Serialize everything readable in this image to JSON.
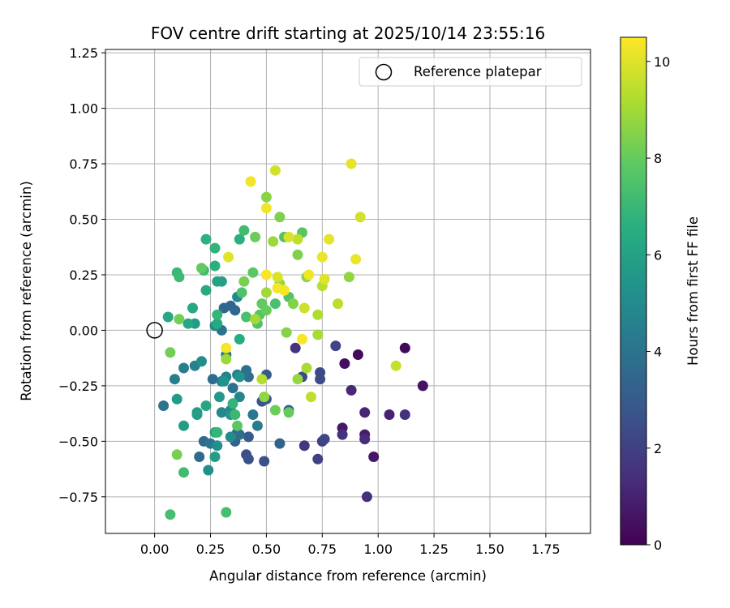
{
  "chart_data": {
    "type": "scatter",
    "title": "FOV centre drift starting at 2025/10/14 23:55:16",
    "xlabel": "Angular distance from reference (arcmin)",
    "ylabel": "Rotation from reference (arcmin)",
    "xlim": [
      -0.22,
      1.95
    ],
    "ylim": [
      -0.915,
      1.265
    ],
    "xticks": [
      0.0,
      0.25,
      0.5,
      0.75,
      1.0,
      1.25,
      1.5,
      1.75
    ],
    "yticks": [
      -0.75,
      -0.5,
      -0.25,
      0.0,
      0.25,
      0.5,
      0.75,
      1.0,
      1.25
    ],
    "grid": true,
    "legend": {
      "placement": "top-right",
      "entries": [
        "Reference platepar"
      ]
    },
    "reference_point": {
      "x": 0.0,
      "y": 0.0,
      "label": "Reference platepar"
    },
    "colorbar": {
      "label": "Hours from first FF file",
      "colormap": "viridis",
      "range": [
        0,
        10.5
      ],
      "ticks": [
        0,
        2,
        4,
        6,
        8,
        10
      ]
    },
    "series": [
      {
        "points": [
          {
            "x": 1.12,
            "y": -0.08,
            "c": 0.2
          },
          {
            "x": 0.91,
            "y": -0.11,
            "c": 0.3
          },
          {
            "x": 0.85,
            "y": -0.15,
            "c": 0.4
          },
          {
            "x": 1.2,
            "y": -0.25,
            "c": 0.5
          },
          {
            "x": 0.98,
            "y": -0.57,
            "c": 0.6
          },
          {
            "x": 0.84,
            "y": -0.44,
            "c": 0.7
          },
          {
            "x": 0.94,
            "y": -0.47,
            "c": 0.8
          },
          {
            "x": 1.05,
            "y": -0.38,
            "c": 1.0
          },
          {
            "x": 0.94,
            "y": -0.37,
            "c": 1.1
          },
          {
            "x": 0.88,
            "y": -0.27,
            "c": 1.2
          },
          {
            "x": 0.94,
            "y": -0.49,
            "c": 1.3
          },
          {
            "x": 0.95,
            "y": -0.75,
            "c": 1.4
          },
          {
            "x": 1.12,
            "y": -0.38,
            "c": 1.5
          },
          {
            "x": 0.84,
            "y": -0.47,
            "c": 1.5
          },
          {
            "x": 0.63,
            "y": -0.08,
            "c": 1.6
          },
          {
            "x": 0.67,
            "y": -0.52,
            "c": 1.7
          },
          {
            "x": 0.75,
            "y": -0.5,
            "c": 1.9
          },
          {
            "x": 0.73,
            "y": -0.58,
            "c": 2.0
          },
          {
            "x": 0.81,
            "y": -0.07,
            "c": 2.1
          },
          {
            "x": 0.76,
            "y": -0.49,
            "c": 2.2
          },
          {
            "x": 0.66,
            "y": -0.21,
            "c": 2.3
          },
          {
            "x": 0.74,
            "y": -0.19,
            "c": 2.3
          },
          {
            "x": 0.74,
            "y": -0.22,
            "c": 2.4
          },
          {
            "x": 0.41,
            "y": -0.56,
            "c": 2.5
          },
          {
            "x": 0.42,
            "y": -0.58,
            "c": 2.6
          },
          {
            "x": 0.49,
            "y": -0.59,
            "c": 2.6
          },
          {
            "x": 0.48,
            "y": -0.32,
            "c": 2.7
          },
          {
            "x": 0.5,
            "y": -0.31,
            "c": 2.8
          },
          {
            "x": 0.5,
            "y": -0.2,
            "c": 2.9
          },
          {
            "x": 0.37,
            "y": -0.46,
            "c": 3.0
          },
          {
            "x": 0.42,
            "y": -0.48,
            "c": 3.0
          },
          {
            "x": 0.6,
            "y": -0.36,
            "c": 3.1
          },
          {
            "x": 0.56,
            "y": -0.51,
            "c": 3.3
          },
          {
            "x": 0.36,
            "y": -0.5,
            "c": 3.3
          },
          {
            "x": 0.34,
            "y": 0.11,
            "c": 3.4
          },
          {
            "x": 0.31,
            "y": 0.1,
            "c": 3.5
          },
          {
            "x": 0.36,
            "y": 0.09,
            "c": 3.5
          },
          {
            "x": 0.2,
            "y": -0.57,
            "c": 3.6
          },
          {
            "x": 0.22,
            "y": -0.5,
            "c": 3.6
          },
          {
            "x": 0.26,
            "y": -0.22,
            "c": 3.7
          },
          {
            "x": 0.38,
            "y": -0.47,
            "c": 3.8
          },
          {
            "x": 0.42,
            "y": -0.21,
            "c": 3.8
          },
          {
            "x": 0.41,
            "y": -0.18,
            "c": 3.9
          },
          {
            "x": 0.35,
            "y": -0.26,
            "c": 3.9
          },
          {
            "x": 0.04,
            "y": -0.34,
            "c": 4.0
          },
          {
            "x": 0.3,
            "y": 0.0,
            "c": 4.0
          },
          {
            "x": 0.25,
            "y": -0.51,
            "c": 4.1
          },
          {
            "x": 0.32,
            "y": -0.11,
            "c": 4.1
          },
          {
            "x": 0.44,
            "y": -0.38,
            "c": 4.2
          },
          {
            "x": 0.46,
            "y": -0.43,
            "c": 4.3
          },
          {
            "x": 0.37,
            "y": -0.2,
            "c": 4.4
          },
          {
            "x": 0.3,
            "y": -0.23,
            "c": 4.4
          },
          {
            "x": 0.09,
            "y": -0.22,
            "c": 4.5
          },
          {
            "x": 0.13,
            "y": -0.17,
            "c": 4.5
          },
          {
            "x": 0.18,
            "y": -0.16,
            "c": 4.6
          },
          {
            "x": 0.32,
            "y": -0.21,
            "c": 4.6
          },
          {
            "x": 0.34,
            "y": -0.36,
            "c": 4.7
          },
          {
            "x": 0.38,
            "y": -0.3,
            "c": 4.8
          },
          {
            "x": 0.3,
            "y": -0.37,
            "c": 4.8
          },
          {
            "x": 0.37,
            "y": 0.15,
            "c": 4.9
          },
          {
            "x": 0.34,
            "y": -0.48,
            "c": 5.0
          },
          {
            "x": 0.27,
            "y": 0.02,
            "c": 5.0
          },
          {
            "x": 0.21,
            "y": -0.14,
            "c": 5.1
          },
          {
            "x": 0.24,
            "y": -0.63,
            "c": 5.2
          },
          {
            "x": 0.28,
            "y": -0.52,
            "c": 5.2
          },
          {
            "x": 0.31,
            "y": -0.23,
            "c": 5.3
          },
          {
            "x": 0.38,
            "y": -0.21,
            "c": 5.4
          },
          {
            "x": 0.34,
            "y": -0.38,
            "c": 5.4
          },
          {
            "x": 0.29,
            "y": -0.3,
            "c": 5.5
          },
          {
            "x": 0.19,
            "y": -0.37,
            "c": 5.6
          },
          {
            "x": 0.1,
            "y": -0.31,
            "c": 5.6
          },
          {
            "x": 0.18,
            "y": 0.03,
            "c": 5.7
          },
          {
            "x": 0.27,
            "y": -0.57,
            "c": 5.8
          },
          {
            "x": 0.13,
            "y": -0.43,
            "c": 5.8
          },
          {
            "x": 0.19,
            "y": -0.38,
            "c": 5.9
          },
          {
            "x": 0.3,
            "y": 0.22,
            "c": 5.9
          },
          {
            "x": 0.28,
            "y": 0.22,
            "c": 6.0
          },
          {
            "x": 0.23,
            "y": -0.34,
            "c": 6.1
          },
          {
            "x": 0.27,
            "y": -0.46,
            "c": 6.1
          },
          {
            "x": 0.15,
            "y": 0.03,
            "c": 6.2
          },
          {
            "x": 0.17,
            "y": 0.1,
            "c": 6.3
          },
          {
            "x": 0.06,
            "y": 0.06,
            "c": 6.3
          },
          {
            "x": 0.23,
            "y": 0.18,
            "c": 6.4
          },
          {
            "x": 0.28,
            "y": 0.03,
            "c": 6.4
          },
          {
            "x": 0.38,
            "y": -0.04,
            "c": 6.5
          },
          {
            "x": 0.38,
            "y": 0.41,
            "c": 6.6
          },
          {
            "x": 0.27,
            "y": 0.29,
            "c": 6.6
          },
          {
            "x": 0.23,
            "y": 0.41,
            "c": 6.7
          },
          {
            "x": 0.27,
            "y": 0.37,
            "c": 6.8
          },
          {
            "x": 0.35,
            "y": -0.33,
            "c": 6.8
          },
          {
            "x": 0.28,
            "y": 0.07,
            "c": 6.9
          },
          {
            "x": 0.28,
            "y": -0.46,
            "c": 6.9
          },
          {
            "x": 0.36,
            "y": -0.38,
            "c": 7.0
          },
          {
            "x": 0.1,
            "y": 0.26,
            "c": 7.0
          },
          {
            "x": 0.22,
            "y": 0.27,
            "c": 7.1
          },
          {
            "x": 0.11,
            "y": 0.24,
            "c": 7.1
          },
          {
            "x": 0.4,
            "y": 0.45,
            "c": 7.2
          },
          {
            "x": 0.13,
            "y": -0.64,
            "c": 7.2
          },
          {
            "x": 0.07,
            "y": -0.83,
            "c": 7.3
          },
          {
            "x": 0.32,
            "y": -0.82,
            "c": 7.3
          },
          {
            "x": 0.41,
            "y": 0.06,
            "c": 7.4
          },
          {
            "x": 0.54,
            "y": 0.12,
            "c": 7.4
          },
          {
            "x": 0.39,
            "y": 0.17,
            "c": 7.5
          },
          {
            "x": 0.46,
            "y": 0.03,
            "c": 7.5
          },
          {
            "x": 0.58,
            "y": 0.42,
            "c": 7.6
          },
          {
            "x": 0.6,
            "y": 0.15,
            "c": 7.6
          },
          {
            "x": 0.47,
            "y": 0.07,
            "c": 7.7
          },
          {
            "x": 0.66,
            "y": 0.44,
            "c": 7.7
          },
          {
            "x": 0.37,
            "y": -0.43,
            "c": 7.8
          },
          {
            "x": 0.44,
            "y": 0.26,
            "c": 7.8
          },
          {
            "x": 0.21,
            "y": 0.28,
            "c": 7.9
          },
          {
            "x": 0.48,
            "y": 0.12,
            "c": 7.9
          },
          {
            "x": 0.5,
            "y": 0.09,
            "c": 8.0
          },
          {
            "x": 0.6,
            "y": -0.37,
            "c": 8.0
          },
          {
            "x": 0.54,
            "y": -0.36,
            "c": 8.1
          },
          {
            "x": 0.45,
            "y": 0.42,
            "c": 8.1
          },
          {
            "x": 0.11,
            "y": 0.05,
            "c": 8.2
          },
          {
            "x": 0.07,
            "y": -0.1,
            "c": 8.2
          },
          {
            "x": 0.1,
            "y": -0.56,
            "c": 8.3
          },
          {
            "x": 0.4,
            "y": 0.22,
            "c": 8.3
          },
          {
            "x": 0.56,
            "y": 0.51,
            "c": 8.4
          },
          {
            "x": 0.64,
            "y": 0.34,
            "c": 8.4
          },
          {
            "x": 0.59,
            "y": -0.01,
            "c": 8.5
          },
          {
            "x": 0.62,
            "y": 0.12,
            "c": 8.5
          },
          {
            "x": 0.5,
            "y": 0.6,
            "c": 8.6
          },
          {
            "x": 0.68,
            "y": 0.24,
            "c": 8.6
          },
          {
            "x": 0.49,
            "y": -0.3,
            "c": 8.7
          },
          {
            "x": 0.87,
            "y": 0.24,
            "c": 8.7
          },
          {
            "x": 0.56,
            "y": 0.21,
            "c": 8.8
          },
          {
            "x": 0.64,
            "y": -0.22,
            "c": 8.8
          },
          {
            "x": 0.32,
            "y": -0.13,
            "c": 8.9
          },
          {
            "x": 0.53,
            "y": 0.4,
            "c": 8.9
          },
          {
            "x": 0.45,
            "y": 0.05,
            "c": 9.0
          },
          {
            "x": 0.5,
            "y": 0.17,
            "c": 9.0
          },
          {
            "x": 0.73,
            "y": -0.02,
            "c": 9.1
          },
          {
            "x": 0.68,
            "y": -0.17,
            "c": 9.1
          },
          {
            "x": 0.73,
            "y": 0.07,
            "c": 9.2
          },
          {
            "x": 0.48,
            "y": -0.22,
            "c": 9.3
          },
          {
            "x": 0.75,
            "y": 0.2,
            "c": 9.4
          },
          {
            "x": 0.82,
            "y": 0.12,
            "c": 9.4
          },
          {
            "x": 0.64,
            "y": 0.41,
            "c": 9.5
          },
          {
            "x": 0.7,
            "y": -0.3,
            "c": 9.5
          },
          {
            "x": 1.08,
            "y": -0.16,
            "c": 9.6
          },
          {
            "x": 0.67,
            "y": 0.1,
            "c": 9.7
          },
          {
            "x": 0.92,
            "y": 0.51,
            "c": 9.8
          },
          {
            "x": 0.54,
            "y": 0.72,
            "c": 9.8
          },
          {
            "x": 0.6,
            "y": 0.42,
            "c": 9.9
          },
          {
            "x": 0.55,
            "y": 0.24,
            "c": 9.9
          },
          {
            "x": 0.33,
            "y": 0.33,
            "c": 10.0
          },
          {
            "x": 0.76,
            "y": 0.23,
            "c": 10.0
          },
          {
            "x": 0.78,
            "y": 0.41,
            "c": 10.1
          },
          {
            "x": 0.88,
            "y": 0.75,
            "c": 10.1
          },
          {
            "x": 0.9,
            "y": 0.32,
            "c": 10.2
          },
          {
            "x": 0.75,
            "y": 0.33,
            "c": 10.2
          },
          {
            "x": 0.5,
            "y": 0.55,
            "c": 10.3
          },
          {
            "x": 0.43,
            "y": 0.67,
            "c": 10.3
          },
          {
            "x": 0.69,
            "y": 0.25,
            "c": 10.3
          },
          {
            "x": 0.58,
            "y": 0.18,
            "c": 10.4
          },
          {
            "x": 0.5,
            "y": 0.25,
            "c": 10.4
          },
          {
            "x": 0.32,
            "y": -0.08,
            "c": 10.4
          },
          {
            "x": 0.66,
            "y": -0.04,
            "c": 10.4
          },
          {
            "x": 0.55,
            "y": 0.19,
            "c": 10.4
          }
        ]
      }
    ]
  }
}
